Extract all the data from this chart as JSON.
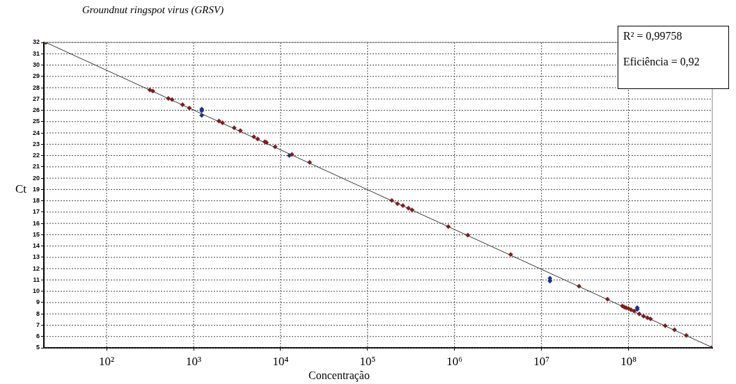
{
  "chart_data": {
    "type": "scatter",
    "title": "Groundnut ringspot virus (GRSV)",
    "xlabel": "Concentração",
    "ylabel": "Ct",
    "annotations": [
      "R² = 0,99758",
      "Eficiência = 0,92"
    ],
    "log": "x",
    "grid": true,
    "legend": false,
    "marker": "diamond",
    "xlim": [
      19,
      920000000
    ],
    "ylim": [
      5,
      32
    ],
    "xticks": [
      {
        "value": 100,
        "label": "10²"
      },
      {
        "value": 1000,
        "label": "10³"
      },
      {
        "value": 10000,
        "label": "10⁴"
      },
      {
        "value": 100000,
        "label": "10⁵"
      },
      {
        "value": 1000000,
        "label": "10⁶"
      },
      {
        "value": 10000000,
        "label": "10⁷"
      },
      {
        "value": 100000000,
        "label": "10⁸"
      }
    ],
    "yticks": [
      5,
      6,
      7,
      8,
      9,
      10,
      11,
      12,
      13,
      14,
      15,
      16,
      17,
      18,
      19,
      20,
      21,
      22,
      23,
      24,
      25,
      26,
      27,
      28,
      29,
      30,
      31,
      32
    ],
    "series": [
      {
        "type": "line",
        "color": "#333333",
        "marker": "none",
        "x": [
          20,
          900000000
        ],
        "values": [
          32,
          5.06
        ]
      },
      {
        "type": "scatter",
        "color": "#8b1a1a",
        "x": [
          20,
          314,
          340,
          513,
          566,
          747,
          893,
          1960,
          2150,
          2930,
          3450,
          4930,
          5450,
          6590,
          6880,
          8650,
          13500,
          21600,
          190000,
          221000,
          255000,
          295000,
          325000,
          849000,
          1420000,
          4420000,
          27000000,
          57300000,
          85000000,
          89500000,
          94000000,
          100000000,
          107000000,
          116000000,
          133000000,
          149000000,
          165000000,
          179000000,
          264000000,
          338000000,
          462000000,
          896000000
        ],
        "values": [
          32,
          27.8,
          27.7,
          27.05,
          26.95,
          26.5,
          26.2,
          25.05,
          24.9,
          24.45,
          24.2,
          23.66,
          23.47,
          23.22,
          23.16,
          22.77,
          22.1,
          21.4,
          18.03,
          17.74,
          17.58,
          17.35,
          17.19,
          15.72,
          14.96,
          13.25,
          10.45,
          9.3,
          8.7,
          8.6,
          8.54,
          8.48,
          8.37,
          8.25,
          8.0,
          7.8,
          7.66,
          7.56,
          6.95,
          6.6,
          6.1,
          5.0
        ]
      },
      {
        "type": "scatter",
        "color": "#1f2f8f",
        "x": [
          1240,
          1240,
          1240,
          12600,
          12500000,
          12500000,
          126000000,
          126000000
        ],
        "values": [
          26.1,
          25.95,
          25.55,
          22.0,
          11.15,
          10.9,
          8.55,
          8.4
        ]
      }
    ]
  }
}
